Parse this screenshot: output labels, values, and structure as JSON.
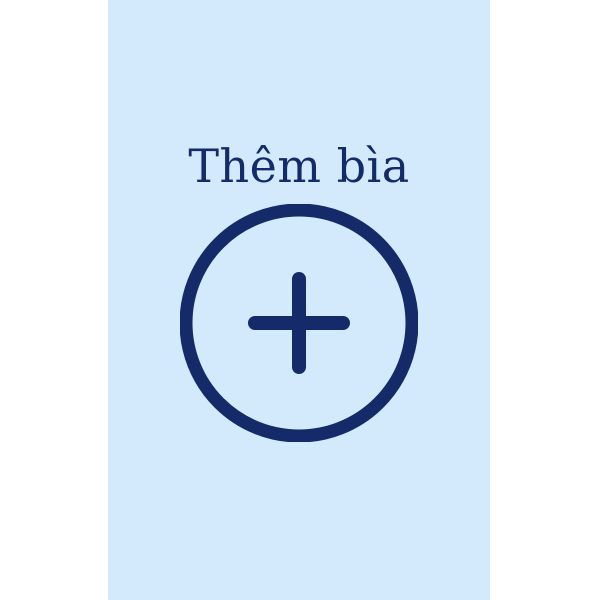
{
  "add_cover": {
    "label": "Thêm bìa",
    "icon": "add-circle-icon",
    "background_color": "#d2eafb",
    "foreground_color": "#152a68"
  }
}
